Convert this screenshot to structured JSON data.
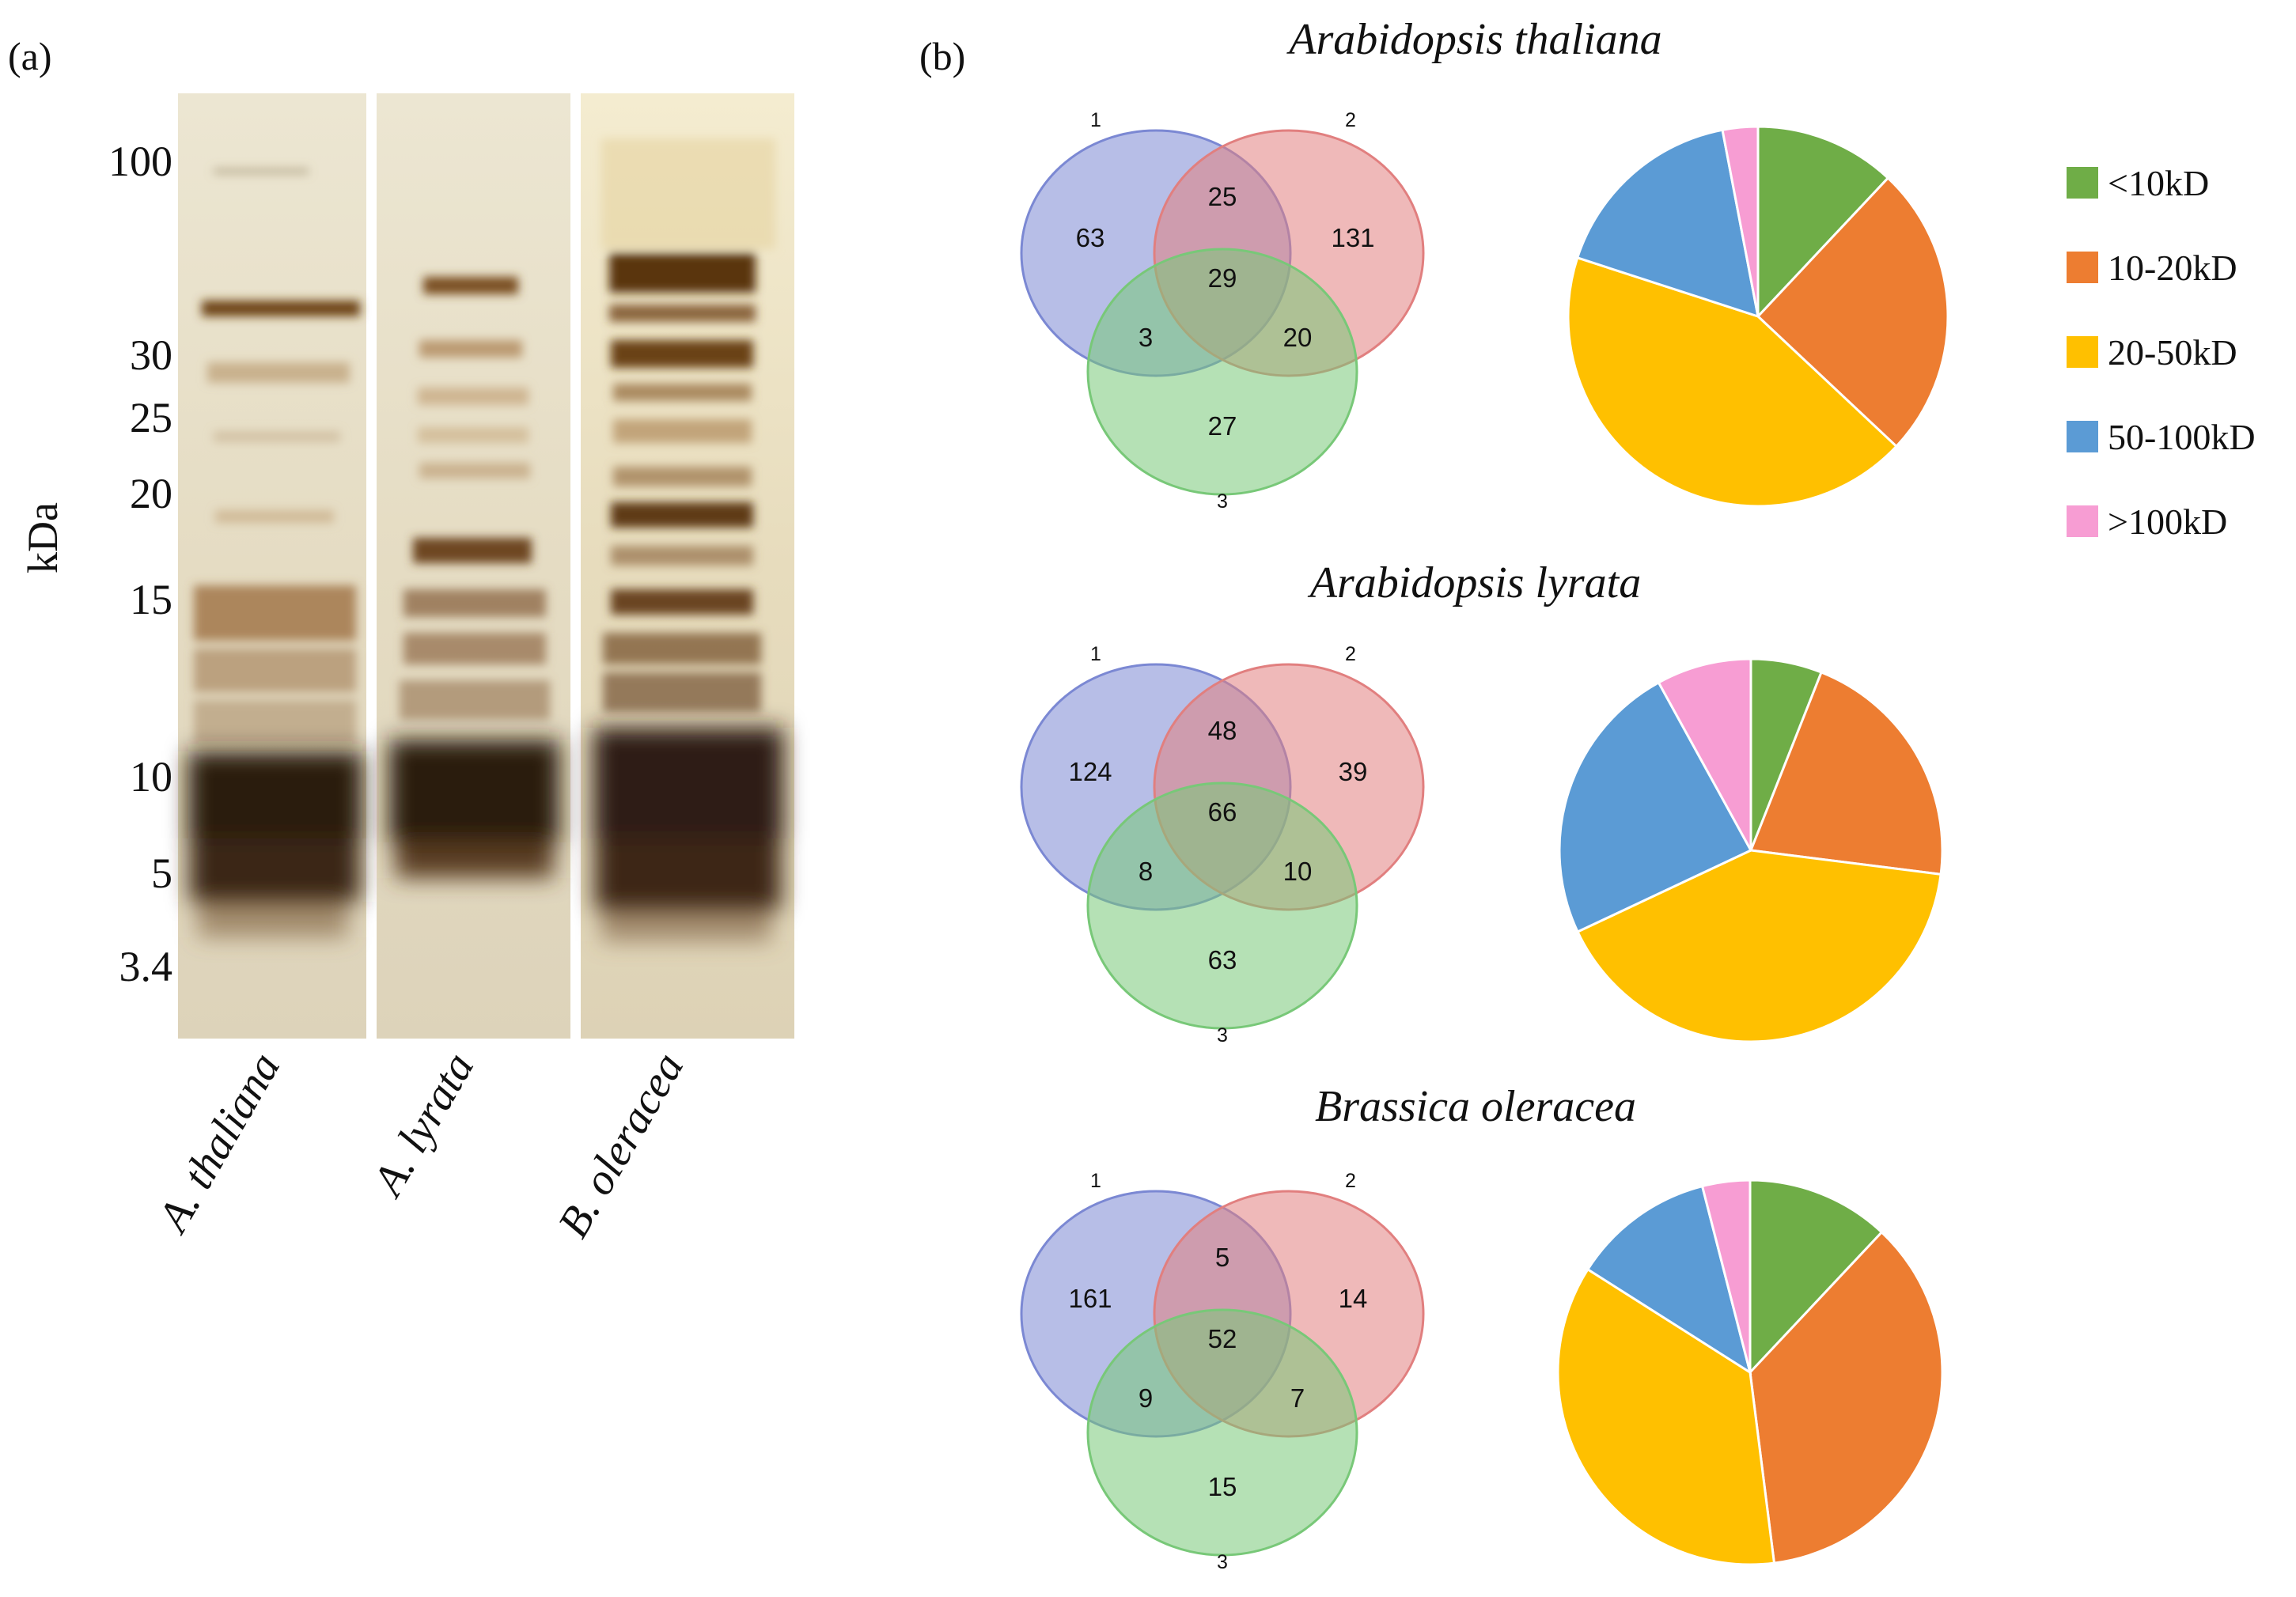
{
  "panel_a": {
    "tag": "(a)",
    "axis_label": "kDa",
    "markers": [
      "100",
      "30",
      "25",
      "20",
      "15",
      "10",
      "5",
      "3.4"
    ],
    "lanes": [
      "A. thaliana",
      "A. lyrata",
      "B. oleracea"
    ]
  },
  "panel_b": {
    "tag": "(b)",
    "set_labels": [
      "1",
      "2",
      "3"
    ],
    "set_colors": [
      "#7b88d3",
      "#e17f7f",
      "#78c878"
    ]
  },
  "chart_data": [
    {
      "type": "venn",
      "title": "Arabidopsis thaliana",
      "sets": [
        "1",
        "2",
        "3"
      ],
      "regions": {
        "only_1": 63,
        "only_2": 131,
        "only_3": 27,
        "1_2": 25,
        "1_3": 3,
        "2_3": 20,
        "1_2_3": 29
      }
    },
    {
      "type": "pie",
      "title": "Arabidopsis thaliana",
      "categories": [
        "<10kD",
        "10-20kD",
        "20-50kD",
        "50-100kD",
        ">100kD"
      ],
      "values": [
        12,
        25,
        43,
        17,
        3
      ]
    },
    {
      "type": "venn",
      "title": "Arabidopsis lyrata",
      "sets": [
        "1",
        "2",
        "3"
      ],
      "regions": {
        "only_1": 124,
        "only_2": 39,
        "only_3": 63,
        "1_2": 48,
        "1_3": 8,
        "2_3": 10,
        "1_2_3": 66
      }
    },
    {
      "type": "pie",
      "title": "Arabidopsis lyrata",
      "categories": [
        "<10kD",
        "10-20kD",
        "20-50kD",
        "50-100kD",
        ">100kD"
      ],
      "values": [
        6,
        21,
        41,
        24,
        8
      ]
    },
    {
      "type": "venn",
      "title": "Brassica oleracea",
      "sets": [
        "1",
        "2",
        "3"
      ],
      "regions": {
        "only_1": 161,
        "only_2": 14,
        "only_3": 15,
        "1_2": 5,
        "1_3": 9,
        "2_3": 7,
        "1_2_3": 52
      }
    },
    {
      "type": "pie",
      "title": "Brassica oleracea",
      "categories": [
        "<10kD",
        "10-20kD",
        "20-50kD",
        "50-100kD",
        ">100kD"
      ],
      "values": [
        12,
        36,
        36,
        12,
        4
      ]
    }
  ],
  "legend": {
    "items": [
      {
        "label": "<10kD",
        "color": "#6fad47"
      },
      {
        "label": "10-20kD",
        "color": "#ed7d31"
      },
      {
        "label": "20-50kD",
        "color": "#ffc000"
      },
      {
        "label": "50-100kD",
        "color": "#5b9bd5"
      },
      {
        "label": ">100kD",
        "color": "#f79dd3"
      }
    ]
  }
}
